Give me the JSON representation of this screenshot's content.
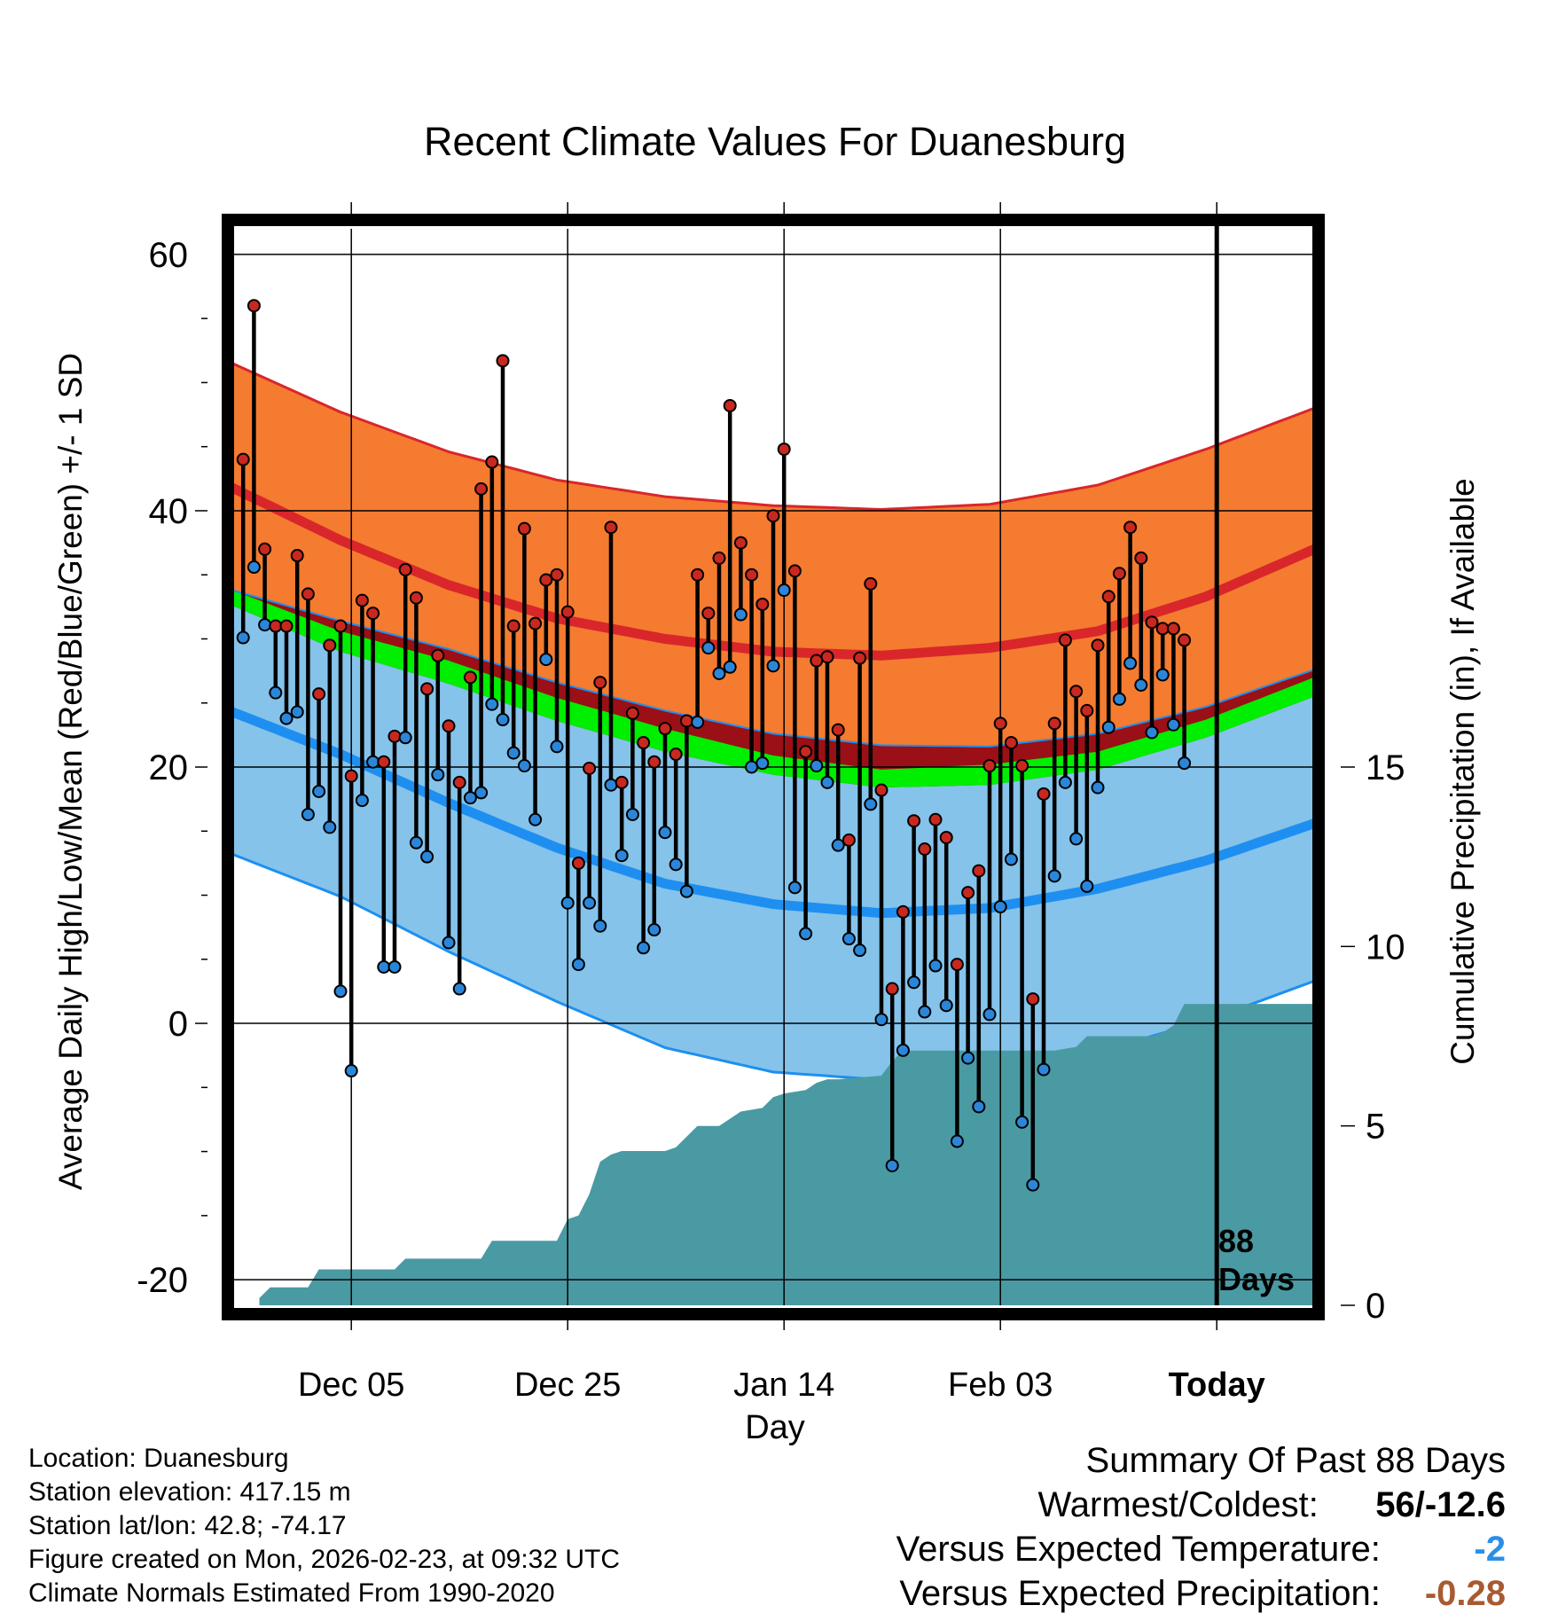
{
  "chart_data": {
    "type": "line",
    "title": "Recent Climate Values For Duanesburg",
    "xlabel": "Day",
    "ylabel": "Average Daily High/Low/Mean (Red/Blue/Green) +/- 1 SD",
    "y2label": "Cumulative Precipitation (in), If Available",
    "ylim": [
      -22,
      62
    ],
    "y2lim": [
      0,
      30
    ],
    "ytick_values": [
      -20,
      0,
      20,
      40,
      60
    ],
    "ytick_labels": [
      "-20",
      "0",
      "20",
      "40",
      "60"
    ],
    "y2tick_values": [
      0,
      5,
      10,
      15
    ],
    "y2tick_labels": [
      "0",
      "5",
      "10",
      "15"
    ],
    "xlim": [
      0,
      100
    ],
    "xticks": [
      {
        "day": 11,
        "label": "Dec 05"
      },
      {
        "day": 31,
        "label": "Dec 25"
      },
      {
        "day": 51,
        "label": "Jan 14"
      },
      {
        "day": 71,
        "label": "Feb 03"
      },
      {
        "day": 91,
        "label": "Today"
      }
    ],
    "today_day": 91,
    "days_annotation": [
      "88",
      "Days"
    ],
    "colors": {
      "high_band": "#f47b2f",
      "high_band_edge": "#d9262b",
      "high_mean": "#d9262b",
      "low_band": "#85c3ea",
      "low_band_edge": "#1e8ff0",
      "low_mean": "#1e8ff0",
      "mean_band": "#00ee00",
      "overlap": "#9a1016",
      "precip": "#4a9aa3",
      "high_marker": "#c8281f",
      "low_marker": "#2b86d9",
      "grid": "#000000"
    },
    "normals": {
      "x": [
        0,
        10,
        20,
        30,
        40,
        50,
        60,
        70,
        80,
        90,
        100
      ],
      "high_upper": [
        51.5,
        47.7,
        44.6,
        42.4,
        41.1,
        40.4,
        40.1,
        40.5,
        42.0,
        44.8,
        48.0
      ],
      "high_mean": [
        41.8,
        37.7,
        34.2,
        31.6,
        30.0,
        29.0,
        28.7,
        29.3,
        30.6,
        33.3,
        37.0
      ],
      "high_lower": [
        33.8,
        31.4,
        29.2,
        26.6,
        24.4,
        22.6,
        21.7,
        21.6,
        22.6,
        24.7,
        27.6
      ],
      "mean_upper": [
        33.8,
        30.6,
        28.3,
        25.4,
        23.0,
        20.9,
        19.8,
        20.2,
        21.2,
        23.7,
        27.0
      ],
      "mean_lower": [
        32.6,
        29.0,
        26.5,
        23.6,
        21.2,
        19.4,
        18.4,
        18.6,
        19.8,
        22.3,
        25.5
      ],
      "low_mean": [
        24.3,
        21.0,
        17.2,
        13.7,
        10.9,
        9.3,
        8.6,
        9.0,
        10.5,
        12.7,
        15.6
      ],
      "low_lower": [
        13.2,
        9.9,
        5.6,
        1.7,
        -1.9,
        -3.8,
        -4.4,
        -3.7,
        -2.2,
        0.2,
        3.3
      ]
    },
    "series": [
      {
        "name": "Daily High",
        "values": [
          44,
          56,
          37,
          31,
          31,
          36.5,
          33.5,
          25.7,
          29.5,
          31,
          19.3,
          33,
          32,
          20.4,
          22.4,
          35.4,
          33.2,
          26.1,
          28.7,
          23.2,
          18.8,
          27,
          41.7,
          43.8,
          51.7,
          31,
          38.6,
          31.2,
          34.6,
          35,
          32.1,
          12.5,
          19.9,
          26.6,
          38.7,
          18.8,
          24.2,
          21.9,
          20.4,
          23,
          21,
          23.6,
          35,
          32,
          36.3,
          48.2,
          37.5,
          35,
          32.7,
          39.6,
          44.8,
          35.3,
          21.2,
          28.3,
          28.6,
          22.9,
          14.3,
          28.5,
          34.3,
          18.2,
          2.7,
          8.7,
          15.8,
          13.6,
          15.9,
          14.5,
          4.6,
          10.2,
          11.9,
          20.1,
          23.4,
          21.9,
          20.1,
          1.9,
          17.9,
          23.4,
          29.9,
          25.9,
          24.4,
          29.5,
          33.3,
          35.1,
          38.7,
          36.3,
          31.3,
          30.8,
          30.8,
          29.9
        ]
      },
      {
        "name": "Daily Low",
        "values": [
          30.1,
          35.6,
          31.1,
          25.8,
          23.8,
          24.3,
          16.3,
          18.1,
          15.3,
          2.5,
          -3.7,
          17.4,
          20.4,
          4.4,
          4.4,
          22.3,
          14.1,
          13,
          19.4,
          6.3,
          2.7,
          17.6,
          18,
          24.9,
          23.7,
          21.1,
          20.1,
          15.9,
          28.4,
          21.6,
          9.4,
          4.6,
          9.4,
          7.6,
          18.6,
          13.1,
          16.3,
          5.9,
          7.3,
          14.9,
          12.4,
          10.3,
          23.5,
          29.3,
          27.3,
          27.8,
          31.9,
          20,
          20.3,
          27.9,
          33.8,
          10.6,
          7,
          20.1,
          18.8,
          13.9,
          6.6,
          5.7,
          17.1,
          0.3,
          -11.1,
          -2.1,
          3.2,
          0.9,
          4.5,
          1.4,
          -9.2,
          -2.7,
          -6.5,
          0.7,
          9.1,
          12.8,
          -7.7,
          -12.6,
          -3.6,
          11.5,
          18.8,
          14.4,
          10.7,
          18.4,
          23.1,
          25.3,
          28.1,
          26.4,
          22.7,
          27.2,
          23.3,
          20.3
        ]
      }
    ],
    "cumulative_precip": {
      "x": [
        2.5,
        3.5,
        7,
        8,
        15,
        16,
        23,
        24,
        30,
        31,
        32,
        33,
        34,
        35,
        36,
        40,
        41,
        42,
        43,
        45,
        46,
        47,
        49,
        50,
        51,
        53,
        54,
        55,
        56,
        60,
        61,
        62,
        68,
        76,
        78,
        79,
        85,
        86,
        87,
        88,
        100
      ],
      "y": [
        0.2,
        0.5,
        0.5,
        1.0,
        1.0,
        1.3,
        1.3,
        1.8,
        1.8,
        2.4,
        2.5,
        3.1,
        4.0,
        4.2,
        4.3,
        4.3,
        4.4,
        4.7,
        5.0,
        5.0,
        5.2,
        5.4,
        5.5,
        5.8,
        5.9,
        6.0,
        6.2,
        6.3,
        6.3,
        6.4,
        6.8,
        7.1,
        7.1,
        7.1,
        7.2,
        7.5,
        7.5,
        7.6,
        7.8,
        8.4,
        8.4
      ]
    }
  },
  "footer": {
    "location": "Location: Duanesburg",
    "elevation": "Station elevation: 417.15 m",
    "latlon": "Station lat/lon: 42.8; -74.17",
    "created": "Figure created on Mon, 2026-02-23, at 09:32 UTC",
    "normals_period": "Climate Normals Estimated From 1990-2020"
  },
  "summary": {
    "heading": "Summary Of Past 88 Days",
    "warm_cold_label": "Warmest/Coldest:",
    "warm_cold_value": "56/-12.6",
    "temp_label": "Versus Expected Temperature:",
    "temp_value": "-2",
    "temp_color": "#2b8fe8",
    "precip_label": "Versus Expected Precipitation:",
    "precip_value": "-0.28",
    "precip_color": "#a85a30"
  }
}
